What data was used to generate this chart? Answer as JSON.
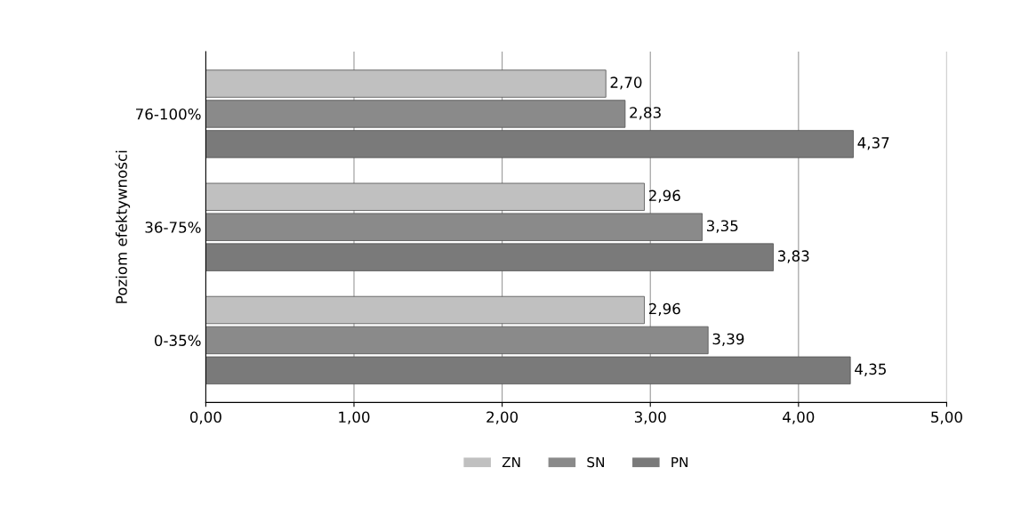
{
  "chart_data": {
    "type": "bar",
    "orientation": "horizontal",
    "ylabel": "Poziom efektywności",
    "categories": [
      "76-100%",
      "36-75%",
      "0-35%"
    ],
    "series": [
      {
        "name": "ZN",
        "color": "#c0c0c0",
        "values": [
          2.7,
          2.96,
          2.96
        ],
        "value_labels": [
          "2,70",
          "2,96",
          "2,96"
        ]
      },
      {
        "name": "SN",
        "color": "#8a8a8a",
        "values": [
          2.83,
          3.35,
          3.39
        ],
        "value_labels": [
          "2,83",
          "3,35",
          "3,39"
        ]
      },
      {
        "name": "PN",
        "color": "#7a7a7a",
        "values": [
          4.37,
          3.83,
          4.35
        ],
        "value_labels": [
          "4,37",
          "3,83",
          "4,35"
        ]
      }
    ],
    "xlim": [
      0,
      5
    ],
    "xticks": [
      {
        "value": 0,
        "label": "0,00"
      },
      {
        "value": 1,
        "label": "1,00"
      },
      {
        "value": 2,
        "label": "2,00"
      },
      {
        "value": 3,
        "label": "3,00"
      },
      {
        "value": 4,
        "label": "4,00"
      },
      {
        "value": 5,
        "label": "5,00"
      }
    ],
    "grid": "x",
    "legend": "bottom"
  }
}
